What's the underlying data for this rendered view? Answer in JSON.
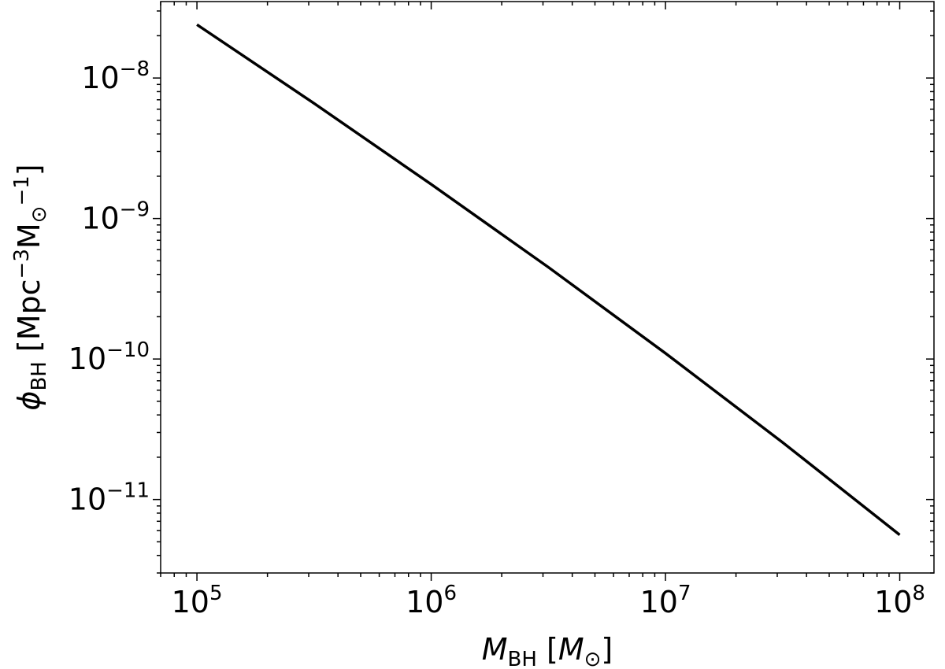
{
  "chart_data": {
    "type": "line",
    "title": "",
    "xlabel": {
      "symbol": "M",
      "subscript": "BH",
      "unit_open": " [",
      "unit_symbol": "M",
      "unit_subscript": "⊙",
      "unit_close": "]"
    },
    "ylabel": {
      "symbol": "ϕ",
      "subscript": "BH",
      "unit_open": " [Mpc",
      "unit_sup1": "−3",
      "unit_mid": "M",
      "unit_sub": "⊙",
      "unit_sup2": "−1",
      "unit_close": "]"
    },
    "x_scale": "log",
    "y_scale": "log",
    "xlim": [
      70000,
      140000000
    ],
    "ylim": [
      3e-12,
      3.5e-08
    ],
    "x_ticks": [
      {
        "value": 100000,
        "base": "10",
        "exp": "5"
      },
      {
        "value": 1000000,
        "base": "10",
        "exp": "6"
      },
      {
        "value": 10000000,
        "base": "10",
        "exp": "7"
      },
      {
        "value": 100000000,
        "base": "10",
        "exp": "8"
      }
    ],
    "y_ticks": [
      {
        "value": 1e-11,
        "base": "10",
        "exp": "−11"
      },
      {
        "value": 1e-10,
        "base": "10",
        "exp": "−10"
      },
      {
        "value": 1e-09,
        "base": "10",
        "exp": "−9"
      },
      {
        "value": 1e-08,
        "base": "10",
        "exp": "−8"
      }
    ],
    "grid": false,
    "series": [
      {
        "color": "#000000",
        "x": [
          100000,
          316228,
          1000000,
          3162278,
          10000000,
          31622777,
          100000000
        ],
        "y": [
          2.4e-08,
          6.6e-09,
          1.75e-09,
          4.5e-10,
          1.1e-10,
          2.55e-11,
          5.6e-12
        ]
      }
    ]
  }
}
